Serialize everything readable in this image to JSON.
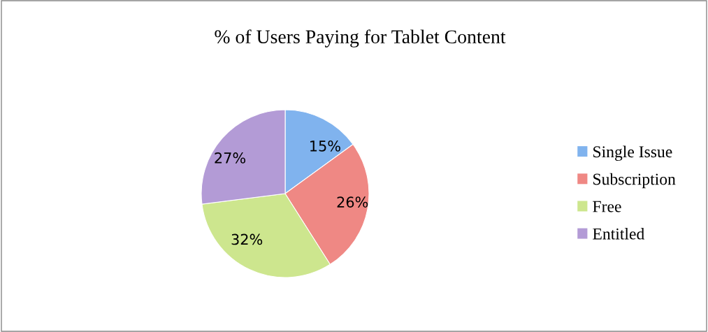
{
  "chart_data": {
    "type": "pie",
    "title": "% of Users Paying for Tablet Content",
    "categories": [
      "Single Issue",
      "Subscription",
      "Free",
      "Entitled"
    ],
    "values": [
      15,
      26,
      32,
      27
    ],
    "colors": [
      "#80b3ee",
      "#ef8884",
      "#cde68e",
      "#b39bd6"
    ],
    "value_labels": [
      "15%",
      "26%",
      "32%",
      "27%"
    ],
    "legend": "right"
  }
}
